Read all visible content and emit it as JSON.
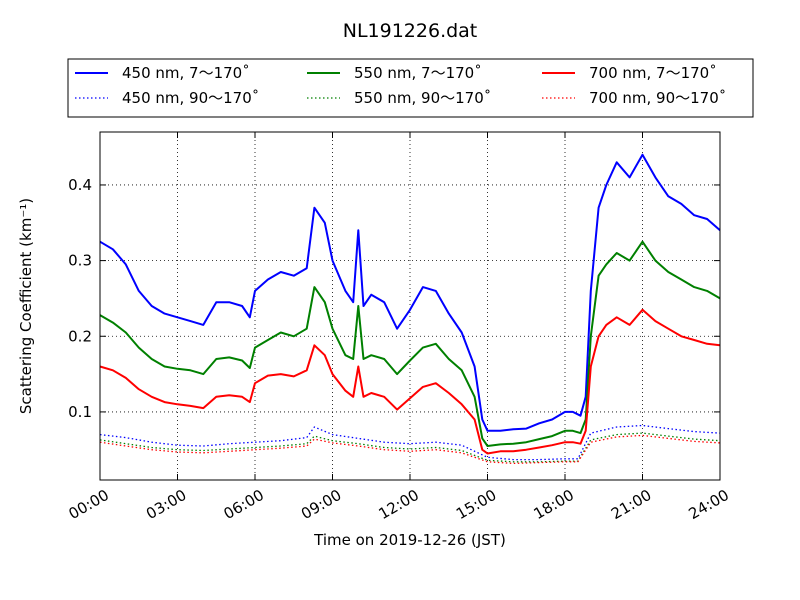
{
  "chart_data": {
    "type": "line",
    "title": "NL191226.dat",
    "xlabel": "Time on 2019-12-26 (JST)",
    "ylabel": "Scattering Coefficient (km⁻¹)",
    "xlim": [
      0,
      24
    ],
    "ylim": [
      0.01,
      0.47
    ],
    "x_ticks": [
      0,
      3,
      6,
      9,
      12,
      15,
      18,
      21,
      24
    ],
    "x_tick_labels": [
      "00:00",
      "03:00",
      "06:00",
      "09:00",
      "12:00",
      "15:00",
      "18:00",
      "21:00",
      "24:00"
    ],
    "y_ticks": [
      0.1,
      0.2,
      0.3,
      0.4
    ],
    "y_tick_labels": [
      "0.1",
      "0.2",
      "0.3",
      "0.4"
    ],
    "grid": true,
    "legend_position": "top, above plot",
    "series": [
      {
        "name": "450 nm, 7～170˚",
        "color": "#0000ff",
        "style": "solid",
        "x": [
          0,
          0.5,
          1,
          1.5,
          2,
          2.5,
          3,
          3.5,
          4,
          4.5,
          5,
          5.5,
          5.8,
          6,
          6.5,
          7,
          7.5,
          8,
          8.3,
          8.7,
          9,
          9.5,
          9.8,
          10,
          10.2,
          10.5,
          11,
          11.5,
          12,
          12.5,
          13,
          13.5,
          14,
          14.5,
          14.8,
          15,
          15.5,
          16,
          16.5,
          17,
          17.5,
          18,
          18.3,
          18.6,
          18.8,
          19,
          19.3,
          19.6,
          20,
          20.5,
          21,
          21.5,
          22,
          22.5,
          23,
          23.5,
          24
        ],
        "y": [
          0.325,
          0.315,
          0.295,
          0.26,
          0.24,
          0.23,
          0.225,
          0.22,
          0.215,
          0.245,
          0.245,
          0.24,
          0.225,
          0.26,
          0.275,
          0.285,
          0.28,
          0.29,
          0.37,
          0.35,
          0.3,
          0.26,
          0.245,
          0.34,
          0.24,
          0.255,
          0.245,
          0.21,
          0.235,
          0.265,
          0.26,
          0.23,
          0.205,
          0.16,
          0.09,
          0.075,
          0.075,
          0.077,
          0.078,
          0.085,
          0.09,
          0.1,
          0.1,
          0.095,
          0.12,
          0.26,
          0.37,
          0.4,
          0.43,
          0.41,
          0.44,
          0.41,
          0.385,
          0.375,
          0.36,
          0.355,
          0.34
        ]
      },
      {
        "name": "550 nm, 7～170˚",
        "color": "#008000",
        "style": "solid",
        "x": [
          0,
          0.5,
          1,
          1.5,
          2,
          2.5,
          3,
          3.5,
          4,
          4.5,
          5,
          5.5,
          5.8,
          6,
          6.5,
          7,
          7.5,
          8,
          8.3,
          8.7,
          9,
          9.5,
          9.8,
          10,
          10.2,
          10.5,
          11,
          11.5,
          12,
          12.5,
          13,
          13.5,
          14,
          14.5,
          14.8,
          15,
          15.5,
          16,
          16.5,
          17,
          17.5,
          18,
          18.3,
          18.6,
          18.8,
          19,
          19.3,
          19.6,
          20,
          20.5,
          21,
          21.5,
          22,
          22.5,
          23,
          23.5,
          24
        ],
        "y": [
          0.228,
          0.218,
          0.205,
          0.185,
          0.17,
          0.16,
          0.157,
          0.155,
          0.15,
          0.17,
          0.172,
          0.168,
          0.158,
          0.185,
          0.195,
          0.205,
          0.2,
          0.21,
          0.265,
          0.245,
          0.21,
          0.175,
          0.17,
          0.24,
          0.17,
          0.175,
          0.17,
          0.15,
          0.168,
          0.185,
          0.19,
          0.17,
          0.155,
          0.12,
          0.065,
          0.055,
          0.057,
          0.058,
          0.06,
          0.064,
          0.068,
          0.075,
          0.075,
          0.072,
          0.09,
          0.2,
          0.28,
          0.295,
          0.31,
          0.3,
          0.325,
          0.3,
          0.285,
          0.275,
          0.265,
          0.26,
          0.25
        ]
      },
      {
        "name": "700 nm, 7～170˚",
        "color": "#ff0000",
        "style": "solid",
        "x": [
          0,
          0.5,
          1,
          1.5,
          2,
          2.5,
          3,
          3.5,
          4,
          4.5,
          5,
          5.5,
          5.8,
          6,
          6.5,
          7,
          7.5,
          8,
          8.3,
          8.7,
          9,
          9.5,
          9.8,
          10,
          10.2,
          10.5,
          11,
          11.5,
          12,
          12.5,
          13,
          13.5,
          14,
          14.5,
          14.8,
          15,
          15.5,
          16,
          16.5,
          17,
          17.5,
          18,
          18.3,
          18.6,
          18.8,
          19,
          19.3,
          19.6,
          20,
          20.5,
          21,
          21.5,
          22,
          22.5,
          23,
          23.5,
          24
        ],
        "y": [
          0.16,
          0.155,
          0.145,
          0.13,
          0.12,
          0.113,
          0.11,
          0.108,
          0.105,
          0.12,
          0.122,
          0.12,
          0.113,
          0.138,
          0.148,
          0.15,
          0.147,
          0.155,
          0.188,
          0.175,
          0.15,
          0.128,
          0.12,
          0.16,
          0.12,
          0.125,
          0.12,
          0.103,
          0.118,
          0.133,
          0.138,
          0.125,
          0.11,
          0.09,
          0.05,
          0.045,
          0.048,
          0.048,
          0.05,
          0.053,
          0.056,
          0.06,
          0.06,
          0.058,
          0.075,
          0.16,
          0.2,
          0.215,
          0.225,
          0.215,
          0.235,
          0.22,
          0.21,
          0.2,
          0.195,
          0.19,
          0.188
        ]
      },
      {
        "name": "450 nm, 90～170˚",
        "color": "#0000ff",
        "style": "dotted",
        "x": [
          0,
          1,
          2,
          3,
          4,
          5,
          6,
          7,
          8,
          8.3,
          9,
          10,
          11,
          12,
          13,
          14,
          15,
          16,
          17,
          18,
          18.5,
          19,
          20,
          21,
          22,
          23,
          24
        ],
        "y": [
          0.07,
          0.066,
          0.06,
          0.056,
          0.055,
          0.058,
          0.06,
          0.062,
          0.066,
          0.08,
          0.07,
          0.065,
          0.06,
          0.058,
          0.06,
          0.056,
          0.04,
          0.037,
          0.037,
          0.038,
          0.038,
          0.072,
          0.08,
          0.082,
          0.078,
          0.074,
          0.072
        ]
      },
      {
        "name": "550 nm, 90～170˚",
        "color": "#008000",
        "style": "dotted",
        "x": [
          0,
          1,
          2,
          3,
          4,
          5,
          6,
          7,
          8,
          8.3,
          9,
          10,
          11,
          12,
          13,
          14,
          15,
          16,
          17,
          18,
          18.5,
          19,
          20,
          21,
          22,
          23,
          24
        ],
        "y": [
          0.063,
          0.058,
          0.053,
          0.05,
          0.049,
          0.051,
          0.053,
          0.055,
          0.058,
          0.068,
          0.062,
          0.058,
          0.053,
          0.051,
          0.053,
          0.049,
          0.036,
          0.034,
          0.034,
          0.035,
          0.035,
          0.063,
          0.07,
          0.072,
          0.068,
          0.064,
          0.062
        ]
      },
      {
        "name": "700 nm, 90～170˚",
        "color": "#ff0000",
        "style": "dotted",
        "x": [
          0,
          1,
          2,
          3,
          4,
          5,
          6,
          7,
          8,
          8.3,
          9,
          10,
          11,
          12,
          13,
          14,
          15,
          16,
          17,
          18,
          18.5,
          19,
          20,
          21,
          22,
          23,
          24
        ],
        "y": [
          0.06,
          0.055,
          0.05,
          0.047,
          0.046,
          0.048,
          0.05,
          0.052,
          0.055,
          0.064,
          0.059,
          0.055,
          0.05,
          0.048,
          0.05,
          0.046,
          0.034,
          0.032,
          0.033,
          0.034,
          0.034,
          0.06,
          0.067,
          0.069,
          0.065,
          0.061,
          0.059
        ]
      }
    ]
  }
}
